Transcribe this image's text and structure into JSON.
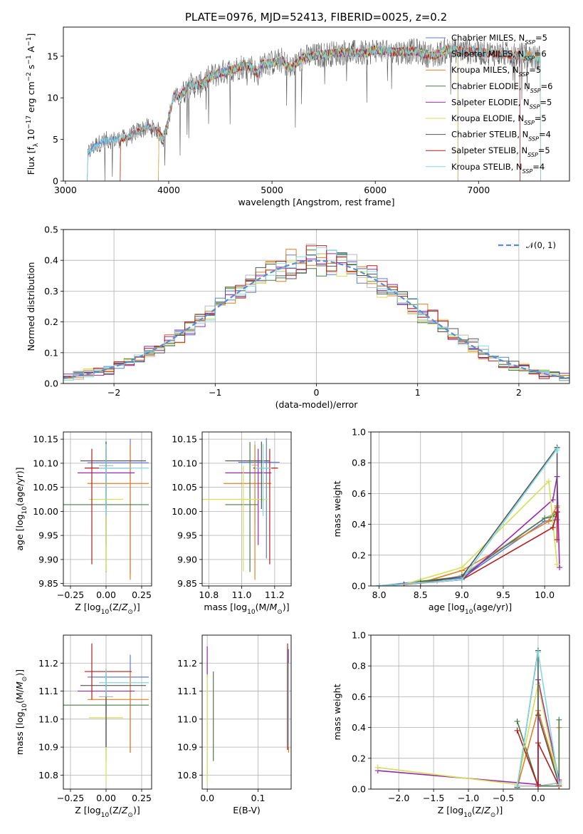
{
  "figure": {
    "title": "PLATE=0976, MJD=52413, FIBERID=0025, z=0.2"
  },
  "series": [
    {
      "name": "Chabrier MILES, N_SSP=5",
      "model": "Chabrier MILES",
      "nssp": "5",
      "color": "#5b7fd3"
    },
    {
      "name": "Salpeter MILES, N_SSP=6",
      "model": "Salpeter MILES",
      "nssp": "6",
      "color": "#b9b9b9"
    },
    {
      "name": "Kroupa MILES, N_SSP=5",
      "model": "Kroupa MILES",
      "nssp": "5",
      "color": "#e67e22"
    },
    {
      "name": "Chabrier ELODIE, N_SSP=6",
      "model": "Chabrier ELODIE",
      "nssp": "6",
      "color": "#4a7a4a"
    },
    {
      "name": "Salpeter ELODIE, N_SSP=5",
      "model": "Salpeter ELODIE",
      "nssp": "5",
      "color": "#9b27b0"
    },
    {
      "name": "Kroupa ELODIE, N_SSP=5",
      "model": "Kroupa ELODIE",
      "nssp": "5",
      "color": "#d4e157"
    },
    {
      "name": "Chabrier STELIB, N_SSP=4",
      "model": "Chabrier STELIB",
      "nssp": "4",
      "color": "#555555"
    },
    {
      "name": "Salpeter STELIB, N_SSP=5",
      "model": "Salpeter STELIB",
      "nssp": "5",
      "color": "#b71c1c"
    },
    {
      "name": "Kroupa STELIB, N_SSP=4",
      "model": "Kroupa STELIB",
      "nssp": "4",
      "color": "#7fdbe0"
    }
  ],
  "chart_data": [
    {
      "id": "spectrum",
      "type": "line",
      "title": "PLATE=0976, MJD=52413, FIBERID=0025, z=0.2",
      "xlabel": "wavelength [Angstrom, rest frame]",
      "ylabel": "Flux [f_λ 10^-17 erg cm^-2 s^-1 A^-1]",
      "xlim": [
        2980,
        7880
      ],
      "ylim": [
        0,
        18.5
      ],
      "xticks": [
        3000,
        4000,
        5000,
        6000,
        7000
      ],
      "yticks": [
        0,
        5,
        10,
        15
      ],
      "anchors": [
        [
          3210,
          0
        ],
        [
          3220,
          3.4
        ],
        [
          3300,
          4.4
        ],
        [
          3400,
          4.9
        ],
        [
          3500,
          5.0
        ],
        [
          3600,
          5.2
        ],
        [
          3700,
          6.0
        ],
        [
          3800,
          6.5
        ],
        [
          3900,
          6.0
        ],
        [
          3950,
          5.0
        ],
        [
          4000,
          7.5
        ],
        [
          4050,
          10.3
        ],
        [
          4100,
          10.0
        ],
        [
          4200,
          11.5
        ],
        [
          4300,
          11.5
        ],
        [
          4400,
          12.5
        ],
        [
          4500,
          13.0
        ],
        [
          4600,
          13.3
        ],
        [
          4700,
          13.8
        ],
        [
          4800,
          13.8
        ],
        [
          4861,
          12.8
        ],
        [
          4900,
          14.0
        ],
        [
          5000,
          14.2
        ],
        [
          5100,
          14.5
        ],
        [
          5175,
          13.5
        ],
        [
          5300,
          14.8
        ],
        [
          5500,
          15.2
        ],
        [
          5700,
          15.5
        ],
        [
          5900,
          15.3
        ],
        [
          6000,
          15.8
        ],
        [
          6200,
          15.5
        ],
        [
          6400,
          15.6
        ],
        [
          6563,
          15.0
        ],
        [
          6700,
          15.8
        ],
        [
          6900,
          15.6
        ],
        [
          7100,
          15.4
        ],
        [
          7300,
          15.2
        ],
        [
          7500,
          15.0
        ],
        [
          7550,
          14.8
        ]
      ],
      "starts": [
        3210,
        3210,
        3530,
        3900,
        3900,
        3900,
        3210,
        3530,
        3210
      ],
      "ends": [
        7400,
        7600,
        7600,
        6800,
        6800,
        6800,
        7600,
        7400,
        7600
      ]
    },
    {
      "id": "residuals",
      "type": "histogram",
      "xlabel": "(data-model)/error",
      "ylabel": "Normed distribution",
      "xlim": [
        -2.5,
        2.5
      ],
      "ylim": [
        0,
        0.5
      ],
      "xticks": [
        -2,
        -1,
        0,
        1,
        2
      ],
      "yticks": [
        0,
        0.1,
        0.2,
        0.3,
        0.4,
        0.5
      ],
      "bin_width": 0.1,
      "reference_label": "𝒩(0, 1)",
      "reference_mean": 0,
      "reference_sigma": 1
    },
    {
      "id": "age_vs_Z",
      "type": "errorbar",
      "xlabel": "Z [log10(Z/Z☉)]",
      "ylabel": "age [log10(age/yr)]",
      "xlim": [
        -0.3,
        0.32
      ],
      "ylim": [
        9.845,
        10.165
      ],
      "xticks": [
        -0.25,
        0,
        0.25
      ],
      "yticks": [
        9.85,
        9.9,
        9.95,
        10.0,
        10.05,
        10.1,
        10.15
      ],
      "points": [
        {
          "x": 0.17,
          "y": 10.101,
          "xerr": [
            0.3,
            0.13
          ],
          "yerr": [
            0.23,
            0.05
          ]
        },
        {
          "x": 0.0,
          "y": 10.095,
          "xerr": [
            0.05,
            0.05
          ],
          "yerr": [
            0.12,
            0.05
          ]
        },
        {
          "x": 0.17,
          "y": 10.058,
          "xerr": [
            0.3,
            0.13
          ],
          "yerr": [
            0.2,
            0.08
          ]
        },
        {
          "x": 0.0,
          "y": 10.014,
          "xerr": [
            0.3,
            0.3
          ],
          "yerr": [
            0.14,
            0.13
          ]
        },
        {
          "x": 0.0,
          "y": 10.08,
          "xerr": [
            0.2,
            0.2
          ],
          "yerr": [
            0.15,
            0.05
          ]
        },
        {
          "x": 0.0,
          "y": 10.025,
          "xerr": [
            0.12,
            0.12
          ],
          "yerr": [
            0.15,
            0.07
          ]
        },
        {
          "x": 0.0,
          "y": 10.105,
          "xerr": [
            0.18,
            0.28
          ],
          "yerr": [
            0.1,
            0.04
          ]
        },
        {
          "x": -0.1,
          "y": 10.09,
          "xerr": [
            0.05,
            0.28
          ],
          "yerr": [
            0.2,
            0.04
          ]
        },
        {
          "x": 0.0,
          "y": 10.09,
          "xerr": [
            0.05,
            0.3
          ],
          "yerr": [
            0.1,
            0.05
          ]
        }
      ]
    },
    {
      "id": "age_vs_mass",
      "type": "errorbar",
      "xlabel": "mass [log10(M/M☉)]",
      "ylabel": "",
      "xlim": [
        10.76,
        11.3
      ],
      "ylim": [
        9.845,
        10.165
      ],
      "xticks": [
        10.8,
        11.0,
        11.2
      ],
      "yticks": [
        9.85,
        9.9,
        9.95,
        10.0,
        10.05,
        10.1,
        10.15
      ],
      "points": [
        {
          "x": 11.15,
          "y": 10.102,
          "xerr": [
            0.17,
            0.08
          ],
          "yerr": [
            0.2,
            0.05
          ]
        },
        {
          "x": 11.08,
          "y": 10.096,
          "xerr": [
            0.02,
            0.02
          ],
          "yerr": [
            0.12,
            0.05
          ]
        },
        {
          "x": 11.08,
          "y": 10.058,
          "xerr": [
            0.19,
            0.1
          ],
          "yerr": [
            0.2,
            0.08
          ]
        },
        {
          "x": 11.05,
          "y": 10.014,
          "xerr": [
            0.15,
            0.05
          ],
          "yerr": [
            0.14,
            0.13
          ]
        },
        {
          "x": 11.1,
          "y": 10.08,
          "xerr": [
            0.2,
            0.08
          ],
          "yerr": [
            0.15,
            0.05
          ]
        },
        {
          "x": 11.01,
          "y": 10.025,
          "xerr": [
            0.25,
            0.15
          ],
          "yerr": [
            0.15,
            0.07
          ]
        },
        {
          "x": 11.12,
          "y": 10.105,
          "xerr": [
            0.22,
            0.05
          ],
          "yerr": [
            0.1,
            0.04
          ]
        },
        {
          "x": 11.17,
          "y": 10.09,
          "xerr": [
            0.1,
            0.05
          ],
          "yerr": [
            0.2,
            0.04
          ]
        },
        {
          "x": 11.13,
          "y": 10.09,
          "xerr": [
            0.05,
            0.05
          ],
          "yerr": [
            0.1,
            0.05
          ]
        }
      ]
    },
    {
      "id": "massweight_vs_age",
      "type": "line",
      "xlabel": "age [log10(age/yr)]",
      "ylabel": "mass weight",
      "xlim": [
        7.9,
        10.3
      ],
      "ylim": [
        0,
        1.0
      ],
      "xticks": [
        8.0,
        8.5,
        9.0,
        9.5,
        10.0
      ],
      "yticks": [
        0,
        0.2,
        0.4,
        0.6,
        0.8,
        1.0
      ],
      "lines": [
        [
          [
            8.0,
            0.0
          ],
          [
            8.5,
            0.03
          ],
          [
            9.0,
            0.05
          ],
          [
            10.0,
            0.42
          ],
          [
            10.15,
            0.43
          ],
          [
            10.15,
            0.48
          ]
        ],
        [
          [
            8.0,
            0.0
          ],
          [
            8.3,
            0.01
          ],
          [
            8.7,
            0.03
          ],
          [
            9.0,
            0.07
          ],
          [
            10.0,
            0.44
          ],
          [
            10.15,
            0.48
          ]
        ],
        [
          [
            8.3,
            0.01
          ],
          [
            8.5,
            0.02
          ],
          [
            9.0,
            0.1
          ],
          [
            10.05,
            0.42
          ],
          [
            10.15,
            0.52
          ],
          [
            10.15,
            0.51
          ]
        ],
        [
          [
            8.5,
            0.03
          ],
          [
            9.0,
            0.06
          ],
          [
            10.0,
            0.44
          ],
          [
            10.1,
            0.45
          ],
          [
            10.15,
            0.48
          ]
        ],
        [
          [
            8.0,
            0.0
          ],
          [
            9.0,
            0.04
          ],
          [
            10.1,
            0.56
          ],
          [
            10.15,
            0.71
          ],
          [
            10.18,
            0.12
          ]
        ],
        [
          [
            8.3,
            0.01
          ],
          [
            9.0,
            0.12
          ],
          [
            10.05,
            0.68
          ],
          [
            10.15,
            0.14
          ]
        ],
        [
          [
            8.0,
            0.0
          ],
          [
            8.5,
            0.02
          ],
          [
            9.0,
            0.06
          ],
          [
            10.15,
            0.9
          ],
          [
            10.15,
            0.48
          ]
        ],
        [
          [
            8.3,
            0.01
          ],
          [
            9.0,
            0.04
          ],
          [
            10.1,
            0.38
          ],
          [
            10.15,
            0.48
          ],
          [
            10.15,
            0.3
          ]
        ],
        [
          [
            8.0,
            0.0
          ],
          [
            9.0,
            0.04
          ],
          [
            10.15,
            0.89
          ],
          [
            10.15,
            0.88
          ]
        ]
      ]
    },
    {
      "id": "mass_vs_Z",
      "type": "errorbar",
      "xlabel": "Z [log10(Z/Z☉)]",
      "ylabel": "mass [log10(M/M☉)]",
      "xlim": [
        -0.3,
        0.32
      ],
      "ylim": [
        10.75,
        11.3
      ],
      "xticks": [
        -0.25,
        0,
        0.25
      ],
      "yticks": [
        10.8,
        10.9,
        11.0,
        11.1,
        11.2
      ],
      "points": [
        {
          "x": 0.17,
          "y": 11.15,
          "xerr": [
            0.3,
            0.13
          ],
          "yerr": [
            0.27,
            0.08
          ]
        },
        {
          "x": 0.0,
          "y": 11.08,
          "xerr": [
            0.05,
            0.05
          ],
          "yerr": [
            0.05,
            0.05
          ]
        },
        {
          "x": 0.17,
          "y": 11.07,
          "xerr": [
            0.3,
            0.13
          ],
          "yerr": [
            0.19,
            0.1
          ]
        },
        {
          "x": 0.0,
          "y": 11.05,
          "xerr": [
            0.3,
            0.3
          ],
          "yerr": [
            0.2,
            0.05
          ]
        },
        {
          "x": 0.0,
          "y": 11.1,
          "xerr": [
            0.2,
            0.2
          ],
          "yerr": [
            0.2,
            0.08
          ]
        },
        {
          "x": 0.0,
          "y": 11.005,
          "xerr": [
            0.12,
            0.12
          ],
          "yerr": [
            0.23,
            0.15
          ]
        },
        {
          "x": 0.0,
          "y": 11.12,
          "xerr": [
            0.18,
            0.28
          ],
          "yerr": [
            0.22,
            0.05
          ]
        },
        {
          "x": -0.1,
          "y": 11.17,
          "xerr": [
            0.05,
            0.28
          ],
          "yerr": [
            0.1,
            0.1
          ]
        },
        {
          "x": 0.0,
          "y": 11.13,
          "xerr": [
            0.05,
            0.3
          ],
          "yerr": [
            0.05,
            0.05
          ]
        }
      ]
    },
    {
      "id": "mass_vs_EBV",
      "type": "errorbar",
      "xlabel": "E(B-V)",
      "ylabel": "",
      "xlim": [
        -0.01,
        0.165
      ],
      "ylim": [
        10.75,
        11.3
      ],
      "xticks": [
        0.0,
        0.1
      ],
      "yticks": [
        10.8,
        10.9,
        11.0,
        11.1,
        11.2
      ],
      "points": [
        {
          "x": 0.16,
          "y": 11.05,
          "xerr": [
            0,
            0
          ],
          "yerr": [
            0.15,
            0.2
          ]
        },
        {
          "x": 0.0,
          "y": 11.0,
          "xerr": [
            0,
            0
          ],
          "yerr": [
            0.2,
            0.2
          ]
        },
        {
          "x": 0.16,
          "y": 11.05,
          "xerr": [
            0,
            0
          ],
          "yerr": [
            0.17,
            0.15
          ]
        },
        {
          "x": 0.012,
          "y": 11.07,
          "xerr": [
            0,
            0
          ],
          "yerr": [
            0.22,
            0.1
          ]
        },
        {
          "x": 0.0,
          "y": 11.2,
          "xerr": [
            0,
            0
          ],
          "yerr": [
            0.05,
            0.06
          ]
        },
        {
          "x": 0.0,
          "y": 10.95,
          "xerr": [
            0,
            0
          ],
          "yerr": [
            0.18,
            0.21
          ]
        },
        {
          "x": 0.158,
          "y": 11.05,
          "xerr": [
            0,
            0
          ],
          "yerr": [
            0.16,
            0.2
          ]
        },
        {
          "x": 0.158,
          "y": 11.08,
          "xerr": [
            0,
            0
          ],
          "yerr": [
            0.19,
            0.19
          ]
        },
        {
          "x": 0.16,
          "y": 11.05,
          "xerr": [
            0,
            0
          ],
          "yerr": [
            0.15,
            0.15
          ]
        }
      ]
    },
    {
      "id": "massweight_vs_Z",
      "type": "line",
      "xlabel": "Z [log10(Z/Z☉)]",
      "ylabel": "mass weight",
      "xlim": [
        -2.4,
        0.45
      ],
      "ylim": [
        0,
        1.0
      ],
      "xticks": [
        -2.0,
        -1.5,
        -1.0,
        -0.5,
        0.0
      ],
      "yticks": [
        0,
        0.2,
        0.4,
        0.6,
        0.8,
        1.0
      ],
      "lines": [
        [
          [
            0.0,
            0.48
          ],
          [
            0.0,
            0.02
          ],
          [
            0.3,
            0.04
          ],
          [
            0.3,
            0.02
          ]
        ],
        [
          [
            -0.3,
            0.02
          ],
          [
            0.0,
            0.02
          ],
          [
            0.3,
            0.04
          ]
        ],
        [
          [
            -0.3,
            0.01
          ],
          [
            0.0,
            0.51
          ],
          [
            0.3,
            0.05
          ],
          [
            0.3,
            0.4
          ]
        ],
        [
          [
            -0.3,
            0.44
          ],
          [
            0.0,
            0.02
          ],
          [
            0.3,
            0.02
          ],
          [
            0.3,
            0.45
          ]
        ],
        [
          [
            -2.3,
            0.12
          ],
          [
            0.0,
            0.03
          ],
          [
            0.0,
            0.71
          ],
          [
            0.3,
            0.06
          ]
        ],
        [
          [
            -2.3,
            0.14
          ],
          [
            -0.3,
            0.03
          ],
          [
            0.0,
            0.68
          ],
          [
            0.3,
            0.02
          ]
        ],
        [
          [
            -0.3,
            0.01
          ],
          [
            0.0,
            0.9
          ],
          [
            0.0,
            0.48
          ],
          [
            0.3,
            0.03
          ]
        ],
        [
          [
            -0.3,
            0.38
          ],
          [
            0.0,
            0.02
          ],
          [
            0.0,
            0.3
          ],
          [
            0.3,
            0.02
          ]
        ],
        [
          [
            -0.3,
            0.02
          ],
          [
            0.0,
            0.89
          ],
          [
            0.3,
            0.03
          ]
        ]
      ]
    }
  ]
}
